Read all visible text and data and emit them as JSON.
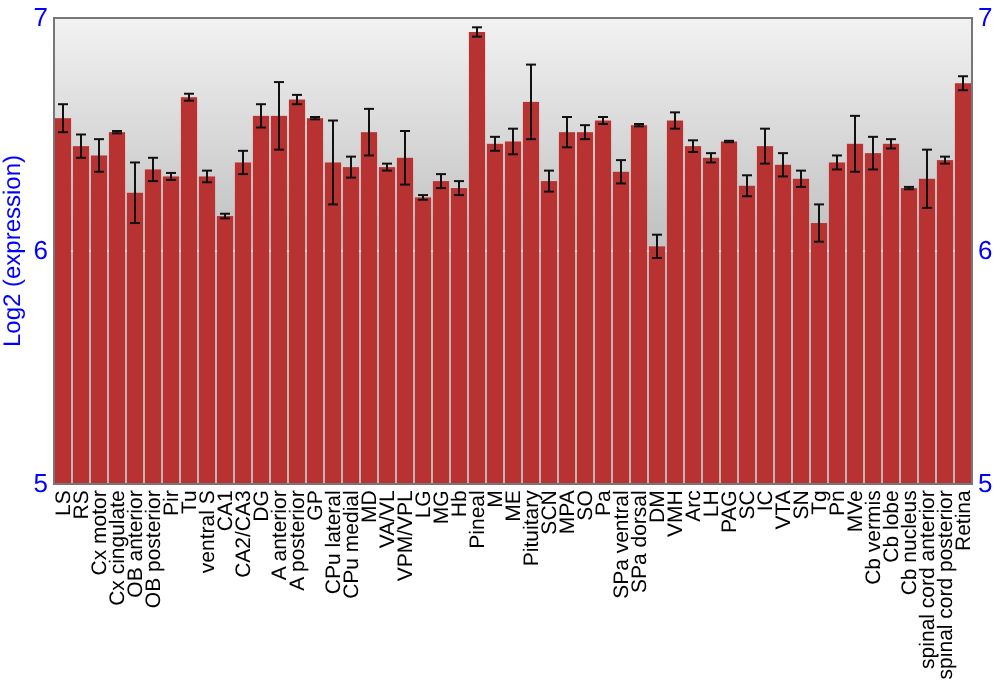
{
  "chart_data": {
    "type": "bar",
    "ylabel": "Log2 (expression)",
    "categories": [
      "LS",
      "RS",
      "Cx motor",
      "Cx cingulate",
      "OB anterior",
      "OB posterior",
      "Pir",
      "Tu",
      "ventral S",
      "CA1",
      "CA2/CA3",
      "DG",
      "A anterior",
      "A posterior",
      "GP",
      "CPu lateral",
      "CPu medial",
      "MD",
      "VA/VL",
      "VPM/VPL",
      "LG",
      "MG",
      "Hb",
      "Pineal",
      "M",
      "ME",
      "Pituitary",
      "SCN",
      "MPA",
      "SO",
      "Pa",
      "SPa ventral",
      "SPa dorsal",
      "DM",
      "VMH",
      "Arc",
      "LH",
      "PAG",
      "SC",
      "IC",
      "VTA",
      "SN",
      "Tg",
      "Pn",
      "MVe",
      "Cb vermis",
      "Cb lobe",
      "Cb nucleus",
      "spinal cord anterior",
      "spinal cord posterior",
      "Retina"
    ],
    "values": [
      6.57,
      6.45,
      6.41,
      6.51,
      6.25,
      6.35,
      6.32,
      6.66,
      6.32,
      6.15,
      6.38,
      6.58,
      6.58,
      6.65,
      6.57,
      6.38,
      6.36,
      6.51,
      6.36,
      6.4,
      6.23,
      6.3,
      6.27,
      6.94,
      6.46,
      6.47,
      6.64,
      6.3,
      6.51,
      6.51,
      6.56,
      6.34,
      6.54,
      6.02,
      6.56,
      6.45,
      6.4,
      6.47,
      6.28,
      6.45,
      6.37,
      6.31,
      6.12,
      6.38,
      6.46,
      6.42,
      6.46,
      6.27,
      6.31,
      6.39,
      6.72
    ],
    "errors": [
      0.06,
      0.05,
      0.07,
      0.005,
      0.13,
      0.05,
      0.015,
      0.015,
      0.025,
      0.01,
      0.05,
      0.05,
      0.145,
      0.02,
      0.005,
      0.18,
      0.045,
      0.1,
      0.015,
      0.115,
      0.01,
      0.03,
      0.03,
      0.02,
      0.03,
      0.055,
      0.16,
      0.045,
      0.065,
      0.03,
      0.015,
      0.05,
      0.005,
      0.05,
      0.035,
      0.025,
      0.02,
      0.003,
      0.045,
      0.075,
      0.05,
      0.035,
      0.08,
      0.03,
      0.12,
      0.07,
      0.02,
      0.005,
      0.125,
      0.015,
      0.03
    ],
    "color": "#b83232",
    "ylim": [
      5,
      7
    ],
    "yticks": [
      5,
      6,
      7
    ],
    "y2lim": [
      5,
      7
    ],
    "y2ticks": [
      5,
      6,
      7
    ],
    "grid": "y"
  }
}
